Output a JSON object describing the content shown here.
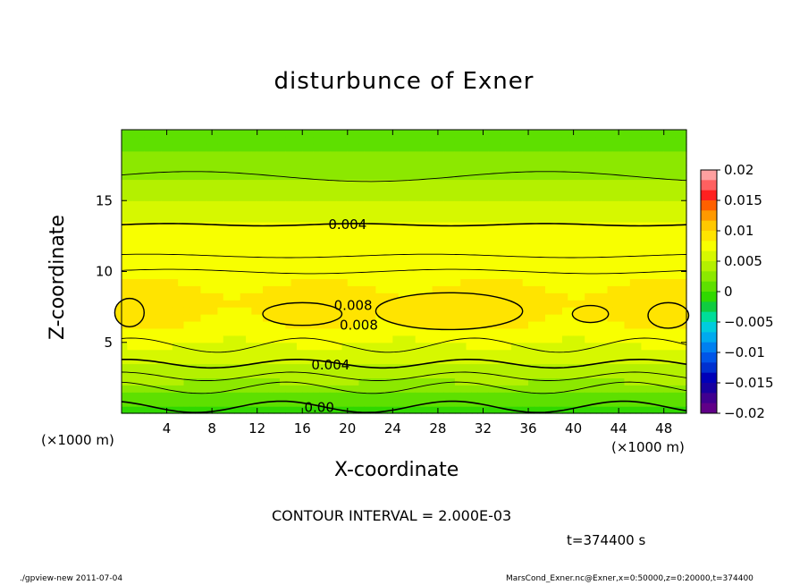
{
  "chart_data": {
    "type": "contour",
    "title": "disturbunce of Exner",
    "xlabel": "X-coordinate",
    "ylabel": "Z-coordinate",
    "x_unit": "(×1000 m)",
    "xlim": [
      0,
      50
    ],
    "ylim": [
      0,
      20
    ],
    "x_ticks": [
      4,
      8,
      12,
      16,
      20,
      24,
      28,
      32,
      36,
      40,
      44,
      48
    ],
    "y_ticks": [
      5,
      10,
      15
    ],
    "colorbar": {
      "ticks": [
        0.02,
        0.015,
        0.01,
        0.005,
        0,
        -0.005,
        -0.01,
        -0.015,
        -0.02
      ],
      "tick_labels": [
        "0.02",
        "0.015",
        "0.01",
        "0.005",
        "0",
        "−0.005",
        "−0.01",
        "−0.015",
        "−0.02"
      ],
      "range": [
        -0.02,
        0.02
      ],
      "colors": [
        "#ffa0a0",
        "#ff6060",
        "#ff2020",
        "#ff6000",
        "#ff9900",
        "#ffc800",
        "#ffe400",
        "#f8ff00",
        "#d6f800",
        "#b4f000",
        "#8ce800",
        "#5ee000",
        "#30d800",
        "#10cc40",
        "#00dd99",
        "#00ccdd",
        "#00aaee",
        "#0080f0",
        "#0055e8",
        "#0030d0",
        "#0000b8",
        "#1800a0",
        "#400090",
        "#600088"
      ]
    },
    "contour_interval": "2.000E-03",
    "contour_labels": [
      {
        "text": "0.004",
        "x": 20,
        "y": 13.3
      },
      {
        "text": "0.008",
        "x": 20.5,
        "y": 7.6
      },
      {
        "text": "0.008",
        "x": 21,
        "y": 6.2
      },
      {
        "text": "0.004",
        "x": 18.5,
        "y": 3.4
      },
      {
        "text": "0.00",
        "x": 17.5,
        "y": 0.4
      }
    ],
    "grid": false
  },
  "annotations": {
    "contour_interval_text": "CONTOUR INTERVAL = 2.000E-03",
    "time_text": "t=374400  s",
    "x_unit_left": "(×1000 m)",
    "x_unit_right": "(×1000 m)"
  },
  "footer": {
    "left": "./gpview-new   2011-07-04",
    "right": "MarsCond_Exner.nc@Exner,x=0:50000,z=0:20000,t=374400"
  }
}
